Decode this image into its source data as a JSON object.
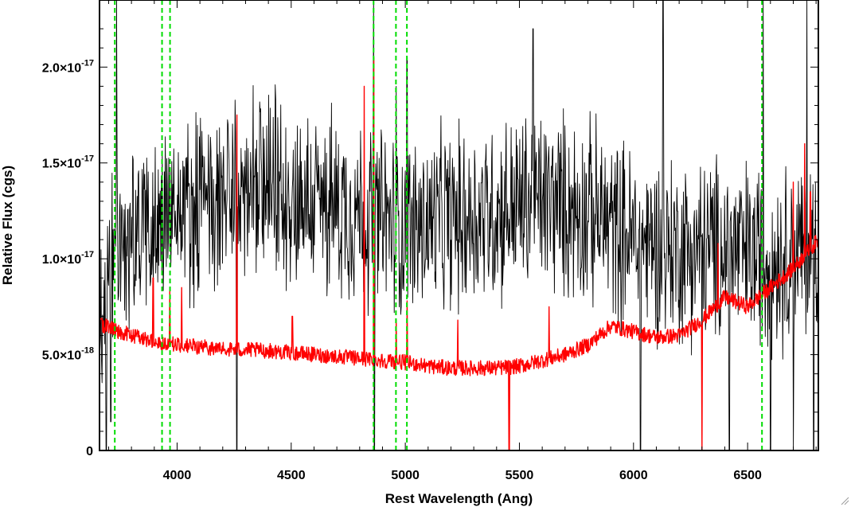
{
  "chart_data": {
    "type": "line",
    "title": "",
    "xlabel": "Rest Wavelength (Ang)",
    "ylabel": "Relative Flux (cgs)",
    "xlim": [
      3660,
      6810
    ],
    "ylim": [
      0,
      2.35e-17
    ],
    "x_ticks": [
      {
        "value": 4000,
        "label": "4000"
      },
      {
        "value": 4500,
        "label": "4500"
      },
      {
        "value": 5000,
        "label": "5000"
      },
      {
        "value": 5500,
        "label": "5500"
      },
      {
        "value": 6000,
        "label": "6000"
      },
      {
        "value": 6500,
        "label": "6500"
      }
    ],
    "y_ticks": [
      {
        "value": 0,
        "mantissa": "0",
        "exponent": ""
      },
      {
        "value": 5e-18,
        "mantissa": "5.0×10",
        "exponent": "-18"
      },
      {
        "value": 1e-17,
        "mantissa": "1.0×10",
        "exponent": "-17"
      },
      {
        "value": 1.5e-17,
        "mantissa": "1.5×10",
        "exponent": "-17"
      },
      {
        "value": 2e-17,
        "mantissa": "2.0×10",
        "exponent": "-17"
      }
    ],
    "grid": false,
    "series": [
      {
        "role": "observed spectrum",
        "color": "#000000",
        "noise_amplitude": 5.8e-18,
        "continuum": {
          "x": [
            3660,
            3700,
            3800,
            3900,
            4000,
            4200,
            4400,
            4600,
            4800,
            5000,
            5200,
            5400,
            5600,
            5800,
            6000,
            6200,
            6400,
            6600,
            6810
          ],
          "y": [
            7e-18,
            9e-18,
            1.1e-17,
            1.2e-17,
            1.25e-17,
            1.3e-17,
            1.35e-17,
            1.3e-17,
            1.25e-17,
            1.15e-17,
            1.2e-17,
            1.25e-17,
            1.3e-17,
            1.25e-17,
            1.1e-17,
            1.05e-17,
            1.05e-17,
            1e-17,
            1.05e-17
          ]
        },
        "spikes": [
          {
            "x": 3735,
            "y": 2.4e-17
          },
          {
            "x": 4262,
            "y": 1.8e-17
          },
          {
            "x": 4862,
            "y": 2.4e-17
          },
          {
            "x": 4960,
            "y": 1.9e-17
          },
          {
            "x": 5008,
            "y": 2.05e-17
          },
          {
            "x": 5560,
            "y": 2.2e-17
          },
          {
            "x": 6130,
            "y": 2.4e-17
          },
          {
            "x": 6568,
            "y": 2.4e-17
          },
          {
            "x": 6760,
            "y": 2.4e-17
          }
        ],
        "dips": [
          {
            "x": 3690,
            "y": 0
          },
          {
            "x": 3710,
            "y": 1.5e-18
          },
          {
            "x": 4262,
            "y": 0
          },
          {
            "x": 4865,
            "y": 0
          },
          {
            "x": 6030,
            "y": 0
          },
          {
            "x": 6300,
            "y": 2e-18
          },
          {
            "x": 6420,
            "y": 0
          },
          {
            "x": 6600,
            "y": 0
          },
          {
            "x": 6700,
            "y": 0
          },
          {
            "x": 6790,
            "y": 0
          }
        ]
      },
      {
        "role": "model spectrum",
        "color": "#ff0000",
        "noise_amplitude": 4e-19,
        "continuum": {
          "x": [
            3660,
            3700,
            3800,
            3900,
            4000,
            4200,
            4400,
            4600,
            4800,
            5000,
            5100,
            5200,
            5400,
            5500,
            5600,
            5700,
            5800,
            5900,
            6000,
            6100,
            6200,
            6300,
            6400,
            6500,
            6600,
            6700,
            6810
          ],
          "y": [
            6.6e-18,
            6.4e-18,
            6e-18,
            5.7e-18,
            5.5e-18,
            5.3e-18,
            5.2e-18,
            5e-18,
            4.8e-18,
            4.6e-18,
            4.4e-18,
            4.3e-18,
            4.3e-18,
            4.4e-18,
            4.7e-18,
            5e-18,
            5.5e-18,
            6.5e-18,
            6.2e-18,
            5.9e-18,
            6e-18,
            6.8e-18,
            8e-18,
            7.5e-18,
            8.5e-18,
            9.5e-18,
            1.1e-17
          ]
        },
        "spikes": [
          {
            "x": 3895,
            "y": 9e-18
          },
          {
            "x": 3968,
            "y": 8.5e-18
          },
          {
            "x": 4020,
            "y": 8.5e-18
          },
          {
            "x": 4262,
            "y": 1.75e-17
          },
          {
            "x": 4505,
            "y": 7e-18
          },
          {
            "x": 4820,
            "y": 1.9e-17
          },
          {
            "x": 4862,
            "y": 2.05e-17
          },
          {
            "x": 4960,
            "y": 6.8e-18
          },
          {
            "x": 5008,
            "y": 7.8e-18
          },
          {
            "x": 5230,
            "y": 6.8e-18
          },
          {
            "x": 5630,
            "y": 7.5e-18
          },
          {
            "x": 6370,
            "y": 1.08e-17
          },
          {
            "x": 6700,
            "y": 1.4e-17
          },
          {
            "x": 6750,
            "y": 1.6e-17
          },
          {
            "x": 6775,
            "y": 1.35e-17
          }
        ],
        "dips": [
          {
            "x": 5455,
            "y": 0
          },
          {
            "x": 6300,
            "y": 0
          }
        ]
      }
    ],
    "reference_lines": {
      "color": "#00dd00",
      "style": "dashed",
      "x": [
        3727,
        3934,
        3969,
        4861,
        4959,
        5007,
        6563
      ]
    }
  }
}
